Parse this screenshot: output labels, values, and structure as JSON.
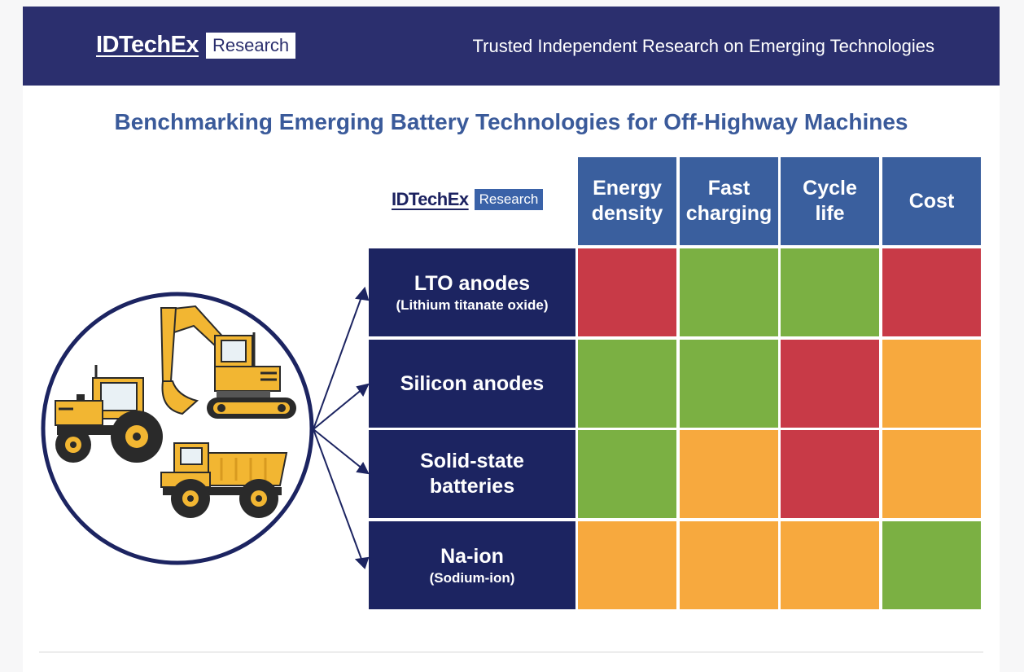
{
  "header": {
    "logo_word": "IDTechEx",
    "logo_box": "Research",
    "tagline": "Trusted Independent Research on Emerging Technologies"
  },
  "title": "Benchmarking Emerging Battery Technologies for Off-Highway Machines",
  "matrix_logo": {
    "word": "IDTechEx",
    "box": "Research"
  },
  "colors": {
    "good": "#7bb043",
    "medium": "#f7a93e",
    "poor": "#c83a47",
    "header_navy": "#2b2f6e",
    "row_navy": "#1c2461",
    "col_blue": "#3a5f9e",
    "title_blue": "#3a5a9a"
  },
  "columns": [
    {
      "line1": "Energy",
      "line2": "density"
    },
    {
      "line1": "Fast",
      "line2": "charging"
    },
    {
      "line1": "Cycle",
      "line2": "life"
    },
    {
      "line1": "Cost",
      "line2": ""
    }
  ],
  "rows": [
    {
      "title": "LTO anodes",
      "title2": "",
      "subtitle": "(Lithium titanate oxide)",
      "ratings": [
        "poor",
        "good",
        "good",
        "poor"
      ]
    },
    {
      "title": "Silicon anodes",
      "title2": "",
      "subtitle": "",
      "ratings": [
        "good",
        "good",
        "poor",
        "medium"
      ]
    },
    {
      "title": "Solid-state",
      "title2": "batteries",
      "subtitle": "",
      "ratings": [
        "good",
        "medium",
        "poor",
        "medium"
      ]
    },
    {
      "title": "Na-ion",
      "title2": "",
      "subtitle": "(Sodium-ion)",
      "ratings": [
        "medium",
        "medium",
        "medium",
        "good"
      ]
    }
  ],
  "illustration": {
    "icons": [
      "tractor-icon",
      "excavator-icon",
      "dump-truck-icon"
    ],
    "vehicle_yellow": "#f2b632",
    "vehicle_dark": "#2a2a2a"
  }
}
